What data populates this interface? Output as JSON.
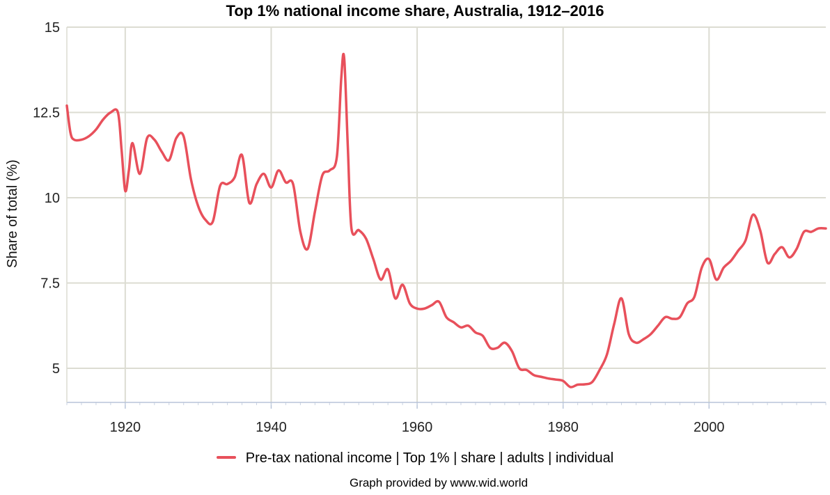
{
  "chart_data": {
    "type": "line",
    "title": "Top 1% national income share, Australia, 1912–2016",
    "ylabel": "Share of total (%)",
    "xlabel": "",
    "xlim": [
      1912,
      2016
    ],
    "ylim": [
      4,
      15
    ],
    "x_ticks": [
      1920,
      1940,
      1960,
      1980,
      2000
    ],
    "y_ticks": [
      5,
      7.5,
      10,
      12.5,
      15
    ],
    "y_tick_labels": [
      "5",
      "7.5",
      "10",
      "12.5",
      "15"
    ],
    "grid": true,
    "legend_position": "bottom",
    "series": [
      {
        "name": "Pre-tax national income | Top 1% | share | adults | individual",
        "color": "#e8505b",
        "points": [
          [
            1912,
            12.7
          ],
          [
            1912.5,
            11.9
          ],
          [
            1913,
            11.7
          ],
          [
            1914,
            11.7
          ],
          [
            1915,
            11.8
          ],
          [
            1916,
            12.0
          ],
          [
            1917,
            12.3
          ],
          [
            1918,
            12.5
          ],
          [
            1919,
            12.5
          ],
          [
            1919.5,
            11.4
          ],
          [
            1920,
            10.2
          ],
          [
            1920.5,
            10.8
          ],
          [
            1921,
            11.6
          ],
          [
            1922,
            10.7
          ],
          [
            1923,
            11.75
          ],
          [
            1924,
            11.7
          ],
          [
            1925,
            11.35
          ],
          [
            1926,
            11.1
          ],
          [
            1927,
            11.75
          ],
          [
            1928,
            11.8
          ],
          [
            1929,
            10.55
          ],
          [
            1930,
            9.75
          ],
          [
            1931,
            9.35
          ],
          [
            1932,
            9.3
          ],
          [
            1933,
            10.35
          ],
          [
            1934,
            10.4
          ],
          [
            1935,
            10.6
          ],
          [
            1936,
            11.25
          ],
          [
            1937,
            9.85
          ],
          [
            1938,
            10.4
          ],
          [
            1939,
            10.7
          ],
          [
            1940,
            10.3
          ],
          [
            1941,
            10.8
          ],
          [
            1942,
            10.45
          ],
          [
            1943,
            10.4
          ],
          [
            1944,
            9.0
          ],
          [
            1945,
            8.5
          ],
          [
            1946,
            9.6
          ],
          [
            1947,
            10.65
          ],
          [
            1948,
            10.8
          ],
          [
            1949,
            11.2
          ],
          [
            1949.6,
            13.5
          ],
          [
            1950,
            14.1
          ],
          [
            1950.5,
            11.5
          ],
          [
            1951,
            9.1
          ],
          [
            1952,
            9.05
          ],
          [
            1953,
            8.8
          ],
          [
            1954,
            8.2
          ],
          [
            1955,
            7.6
          ],
          [
            1956,
            7.9
          ],
          [
            1957,
            7.05
          ],
          [
            1958,
            7.45
          ],
          [
            1959,
            6.9
          ],
          [
            1960,
            6.75
          ],
          [
            1961,
            6.75
          ],
          [
            1962,
            6.85
          ],
          [
            1963,
            6.95
          ],
          [
            1964,
            6.5
          ],
          [
            1965,
            6.35
          ],
          [
            1966,
            6.2
          ],
          [
            1967,
            6.25
          ],
          [
            1968,
            6.05
          ],
          [
            1969,
            5.95
          ],
          [
            1970,
            5.6
          ],
          [
            1971,
            5.6
          ],
          [
            1972,
            5.75
          ],
          [
            1973,
            5.5
          ],
          [
            1974,
            5.0
          ],
          [
            1975,
            4.95
          ],
          [
            1976,
            4.8
          ],
          [
            1977,
            4.75
          ],
          [
            1978,
            4.7
          ],
          [
            1979,
            4.67
          ],
          [
            1980,
            4.63
          ],
          [
            1981,
            4.45
          ],
          [
            1982,
            4.52
          ],
          [
            1983,
            4.53
          ],
          [
            1984,
            4.6
          ],
          [
            1985,
            4.95
          ],
          [
            1986,
            5.4
          ],
          [
            1987,
            6.3
          ],
          [
            1988,
            7.05
          ],
          [
            1989,
            6.0
          ],
          [
            1990,
            5.75
          ],
          [
            1991,
            5.85
          ],
          [
            1992,
            6.0
          ],
          [
            1993,
            6.25
          ],
          [
            1994,
            6.5
          ],
          [
            1995,
            6.45
          ],
          [
            1996,
            6.5
          ],
          [
            1997,
            6.9
          ],
          [
            1998,
            7.1
          ],
          [
            1999,
            7.95
          ],
          [
            2000,
            8.2
          ],
          [
            2001,
            7.6
          ],
          [
            2002,
            7.95
          ],
          [
            2003,
            8.15
          ],
          [
            2004,
            8.45
          ],
          [
            2005,
            8.75
          ],
          [
            2006,
            9.5
          ],
          [
            2007,
            9.05
          ],
          [
            2008,
            8.1
          ],
          [
            2009,
            8.35
          ],
          [
            2010,
            8.55
          ],
          [
            2011,
            8.25
          ],
          [
            2012,
            8.5
          ],
          [
            2013,
            9.0
          ],
          [
            2014,
            9.0
          ],
          [
            2015,
            9.1
          ],
          [
            2016,
            9.1
          ]
        ]
      }
    ]
  },
  "footer": {
    "credit": "Graph provided by www.wid.world"
  }
}
